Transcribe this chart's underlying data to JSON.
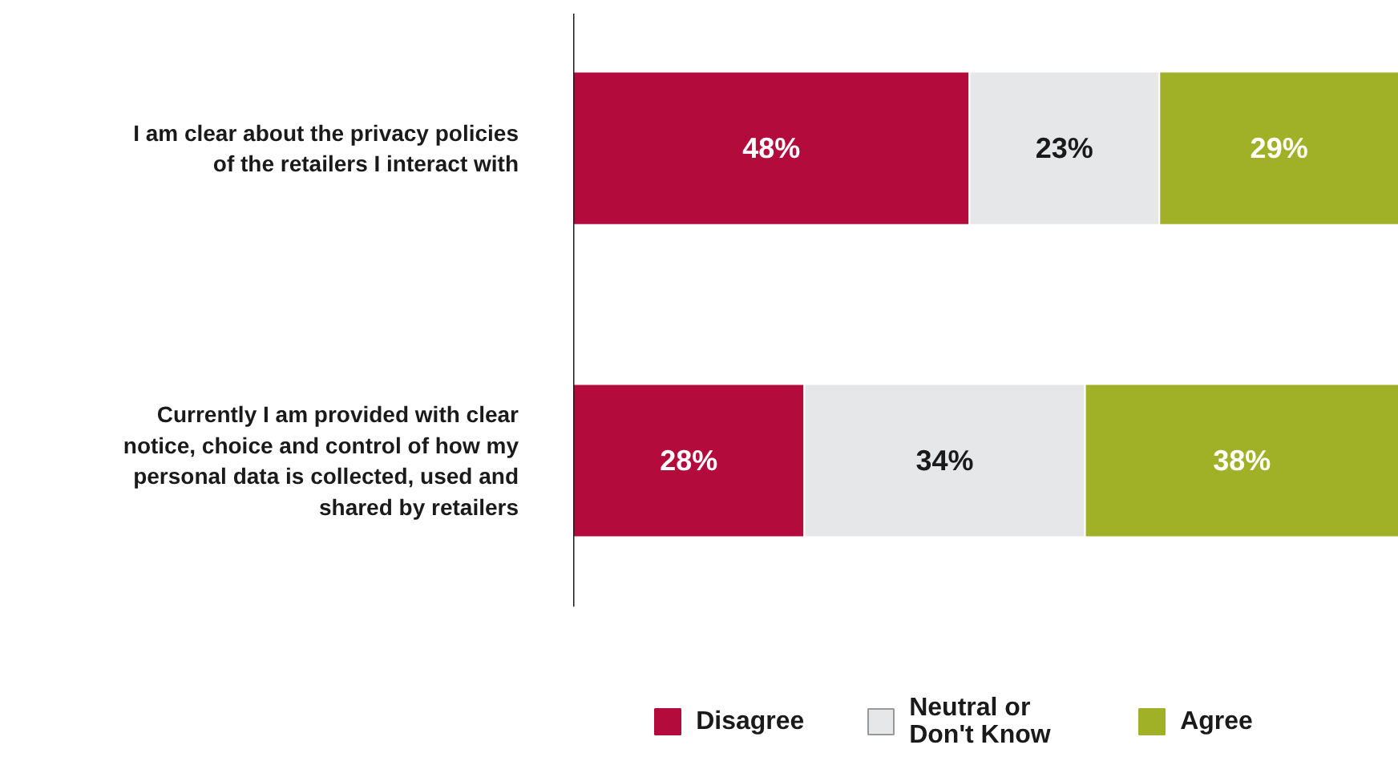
{
  "chart_data": {
    "type": "bar",
    "orientation": "horizontal",
    "stacked": true,
    "categories": [
      "I am clear about the privacy policies of the retailers I interact with",
      "Currently I am provided with clear notice, choice and control of how my personal data is collected, used and shared by retailers"
    ],
    "series": [
      {
        "name": "Disagree",
        "color": "#b30c3c",
        "values": [
          48,
          28
        ],
        "value_labels": [
          "48%",
          "28%"
        ]
      },
      {
        "name": "Neutral or Don't Know",
        "color": "#e6e7e8",
        "values": [
          23,
          34
        ],
        "value_labels": [
          "23%",
          "34%"
        ]
      },
      {
        "name": "Agree",
        "color": "#a0b128",
        "values": [
          29,
          38
        ],
        "value_labels": [
          "29%",
          "38%"
        ]
      }
    ],
    "xlim": [
      0,
      100
    ],
    "tick_labels": "y",
    "grid": false,
    "legend": "bottom"
  }
}
